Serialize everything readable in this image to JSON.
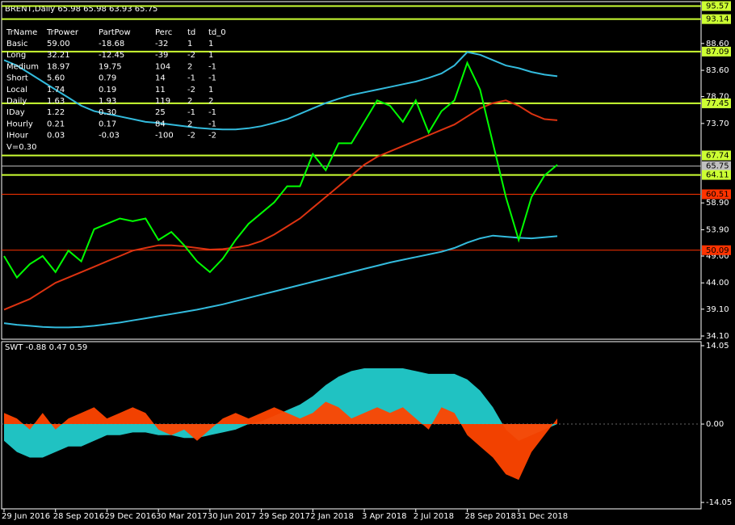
{
  "chart_data": [
    {
      "type": "line",
      "title": "BRENT,Daily 65.98 65.98 63.93 65.75",
      "categories": [
        "29 Jun 2016",
        null,
        null,
        null,
        "28 Sep 2016",
        null,
        null,
        null,
        "29 Dec 2016",
        null,
        null,
        null,
        "30 Mar 2017",
        null,
        null,
        null,
        "30 Jun 2017",
        null,
        null,
        null,
        "29 Sep 2017",
        null,
        null,
        null,
        "2 Jan 2018",
        null,
        null,
        null,
        "3 Apr 2018",
        null,
        null,
        null,
        "2 Jul 2018",
        null,
        null,
        null,
        "28 Sep 2018",
        null,
        null,
        null,
        "31 Dec 2018",
        null,
        null,
        null
      ],
      "series": [
        {
          "color": "#33bbdd",
          "values": [
            85.5,
            84.5,
            83,
            81.5,
            80,
            78.5,
            77,
            76,
            75.5,
            75,
            74.5,
            74,
            73.8,
            73.5,
            73.2,
            72.9,
            72.7,
            72.6,
            72.6,
            72.8,
            73.2,
            73.8,
            74.5,
            75.5,
            76.5,
            77.5,
            78.3,
            79,
            79.5,
            80,
            80.5,
            81,
            81.5,
            82.2,
            83,
            84.5,
            87,
            86.5,
            85.5,
            84.5,
            84,
            83.3,
            82.8,
            82.5
          ]
        },
        {
          "color": "#33bbdd",
          "values": [
            36.5,
            36.2,
            36,
            35.8,
            35.7,
            35.7,
            35.8,
            36,
            36.3,
            36.6,
            37,
            37.4,
            37.8,
            38.2,
            38.6,
            39,
            39.5,
            40,
            40.6,
            41.2,
            41.8,
            42.4,
            43,
            43.6,
            44.2,
            44.8,
            45.4,
            46,
            46.6,
            47.2,
            47.8,
            48.3,
            48.8,
            49.3,
            49.8,
            50.5,
            51.5,
            52.3,
            52.8,
            52.6,
            52.4,
            52.3,
            52.5,
            52.7
          ]
        },
        {
          "color": "#dd3311",
          "values": [
            39,
            40,
            41,
            42.5,
            44,
            45,
            46,
            47,
            48,
            49,
            50,
            50.5,
            51,
            51,
            50.8,
            50.5,
            50.2,
            50.3,
            50.6,
            51,
            51.8,
            53,
            54.5,
            56,
            58,
            60,
            62,
            64,
            66,
            67.5,
            68.5,
            69.5,
            70.5,
            71.5,
            72.5,
            73.5,
            75,
            76.5,
            77.5,
            78,
            77,
            75.5,
            74.5,
            74.3
          ]
        },
        {
          "color": "#00ff00",
          "values": [
            49,
            45,
            47.5,
            49,
            46,
            50,
            48,
            54,
            55,
            56,
            55.5,
            56,
            52,
            53.5,
            51,
            48,
            46,
            48.5,
            52,
            55,
            57,
            59,
            62,
            62,
            68,
            65,
            70,
            70,
            74,
            78,
            77,
            74,
            78,
            72,
            76,
            78,
            85,
            80,
            70,
            60,
            52,
            60,
            64,
            66
          ]
        }
      ],
      "ylim": [
        33.5,
        96.7
      ],
      "yticks": [
        {
          "value": 88.6,
          "label": "88.60"
        },
        {
          "value": 83.6,
          "label": "83.60"
        },
        {
          "value": 78.7,
          "label": "78.70"
        },
        {
          "value": 73.7,
          "label": "73.70"
        },
        {
          "value": 58.9,
          "label": "58.90"
        },
        {
          "value": 53.9,
          "label": "53.90"
        },
        {
          "value": 49,
          "label": "49.00"
        },
        {
          "value": 44,
          "label": "44.00"
        },
        {
          "value": 39.1,
          "label": "39.10"
        },
        {
          "value": 34.1,
          "label": "34.10"
        }
      ],
      "levels": [
        {
          "value": 95.57,
          "color": "#ccff33"
        },
        {
          "value": 93.14,
          "color": "#ccff33"
        },
        {
          "value": 87.09,
          "color": "#ccff33"
        },
        {
          "value": 77.45,
          "color": "#ccff33"
        },
        {
          "value": 67.74,
          "color": "#ccff33"
        },
        {
          "value": 65.75,
          "color": "#c0c0c0"
        },
        {
          "value": 64.11,
          "color": "#ccff33"
        },
        {
          "value": 60.51,
          "color": "#ff3300"
        },
        {
          "value": 50.09,
          "color": "#ff3300"
        }
      ],
      "table": {
        "columns": [
          "TrName",
          "TrPower",
          "PartPow",
          "Perc",
          "td",
          "td_0"
        ],
        "rows": [
          [
            "Basic",
            "59.00",
            "-18.68",
            "-32",
            "1",
            "1"
          ],
          [
            "Long",
            "32.21",
            "-12.45",
            "-39",
            "-2",
            "1"
          ],
          [
            "Medium",
            "18.97",
            "19.75",
            "104",
            "2",
            "-1"
          ],
          [
            "Short",
            "5.60",
            "0.79",
            "14",
            "-1",
            "-1"
          ],
          [
            "Local",
            "1.74",
            "0.19",
            "11",
            "-2",
            "1"
          ],
          [
            "Daily",
            "1.63",
            "1.93",
            "119",
            "2",
            "2"
          ],
          [
            "IDay",
            "1.22",
            "0.30",
            "25",
            "-1",
            "-1"
          ],
          [
            "Hourly",
            "0.21",
            "0.17",
            "84",
            "2",
            "-1"
          ],
          [
            "IHour",
            "0.03",
            "-0.03",
            "-100",
            "-2",
            "-2"
          ]
        ],
        "note": "V=0.30"
      }
    },
    {
      "type": "area",
      "title": "SWT -0.88 0.47 0.59",
      "series": [
        {
          "color": "#22cccc",
          "values": [
            -3,
            -5,
            -6,
            -6,
            -5,
            -4,
            -4,
            -3,
            -2,
            -2,
            -1.5,
            -1.5,
            -2,
            -2,
            -2.5,
            -2.5,
            -2,
            -1.5,
            -1,
            0,
            0.5,
            1.5,
            2.5,
            3.5,
            5,
            7,
            8.5,
            9.5,
            10,
            10,
            10,
            10,
            9.5,
            9,
            9,
            9,
            8,
            6,
            3,
            -1,
            -3,
            -2,
            -1,
            0
          ]
        },
        {
          "color": "#ff4400",
          "values": [
            2,
            1,
            -1,
            2,
            -1,
            1,
            2,
            3,
            1,
            2,
            3,
            2,
            -1,
            -2,
            -1,
            -3,
            -1,
            1,
            2,
            1,
            2,
            3,
            2,
            1,
            2,
            4,
            3,
            1,
            2,
            3,
            2,
            3,
            1,
            -1,
            3,
            2,
            -2,
            -4,
            -6,
            -9,
            -10,
            -5,
            -2,
            1
          ]
        }
      ],
      "ylim": [
        -15.2,
        14.92
      ],
      "yticks": [
        14.05,
        {
          "value": 0,
          "label": "0.00"
        },
        -14.05
      ]
    }
  ]
}
